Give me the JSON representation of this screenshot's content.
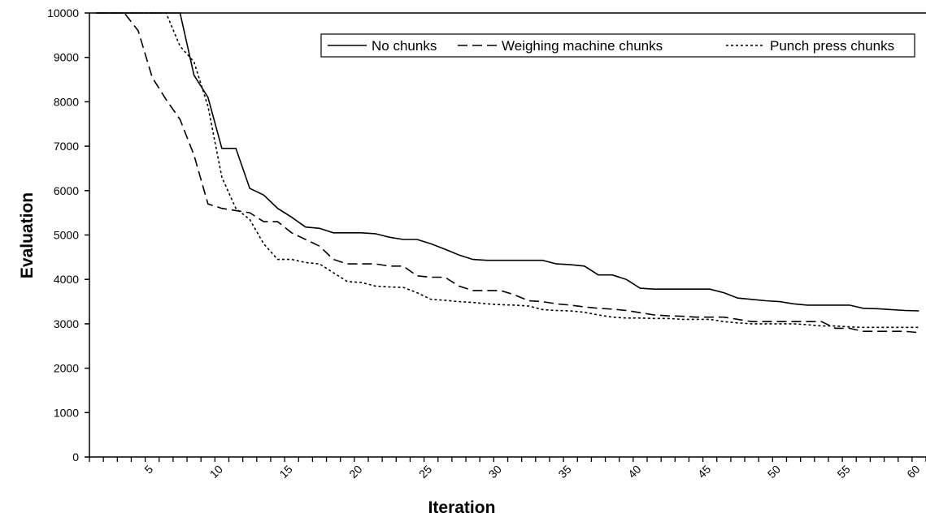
{
  "chart_data": {
    "type": "line",
    "x_label": "Iteration",
    "y_label": "Evaluation",
    "categories": [
      null,
      null,
      null,
      null,
      "5",
      null,
      null,
      null,
      null,
      "10",
      null,
      null,
      null,
      null,
      "15",
      null,
      null,
      null,
      null,
      "20",
      null,
      null,
      null,
      null,
      "25",
      null,
      null,
      null,
      null,
      "30",
      null,
      null,
      null,
      null,
      "35",
      null,
      null,
      null,
      null,
      "40",
      null,
      null,
      null,
      null,
      "45",
      null,
      null,
      null,
      null,
      "50",
      null,
      null,
      null,
      null,
      "55",
      null,
      null,
      null,
      null,
      "60"
    ],
    "ylim": [
      0,
      10000
    ],
    "yticks": [
      0,
      1000,
      2000,
      3000,
      4000,
      5000,
      6000,
      7000,
      8000,
      9000,
      10000
    ],
    "legend": "top-right",
    "series": [
      {
        "name": "No chunks",
        "color": "#000000",
        "dash": "solid",
        "values": [
          10000,
          10000,
          10000,
          10000,
          10000,
          10000,
          10000,
          8600,
          8100,
          6950,
          6950,
          6050,
          5900,
          5600,
          5400,
          5180,
          5150,
          5050,
          5050,
          5050,
          5030,
          4950,
          4900,
          4900,
          4800,
          4680,
          4550,
          4450,
          4430,
          4430,
          4430,
          4430,
          4430,
          4350,
          4330,
          4300,
          4100,
          4100,
          4000,
          3800,
          3780,
          3780,
          3780,
          3780,
          3780,
          3700,
          3580,
          3550,
          3520,
          3500,
          3450,
          3420,
          3420,
          3420,
          3420,
          3350,
          3340,
          3320,
          3300,
          3290
        ]
      },
      {
        "name": "Weighing machine chunks",
        "color": "#000000",
        "dash": "dashed",
        "values": [
          10000,
          10000,
          10000,
          9600,
          8550,
          8050,
          7600,
          6800,
          5700,
          5600,
          5550,
          5500,
          5300,
          5300,
          5050,
          4900,
          4750,
          4450,
          4350,
          4350,
          4350,
          4300,
          4300,
          4080,
          4050,
          4050,
          3850,
          3750,
          3750,
          3750,
          3650,
          3520,
          3500,
          3450,
          3420,
          3380,
          3350,
          3330,
          3300,
          3250,
          3200,
          3180,
          3170,
          3150,
          3150,
          3150,
          3100,
          3050,
          3050,
          3050,
          3050,
          3050,
          3050,
          2900,
          2900,
          2830,
          2830,
          2830,
          2830,
          2800
        ]
      },
      {
        "name": "Punch press chunks",
        "color": "#000000",
        "dash": "dotted",
        "values": [
          10000,
          10000,
          10000,
          10000,
          10000,
          10000,
          9250,
          8900,
          7900,
          6300,
          5600,
          5350,
          4800,
          4450,
          4450,
          4380,
          4350,
          4150,
          3950,
          3930,
          3850,
          3830,
          3820,
          3700,
          3550,
          3530,
          3500,
          3480,
          3450,
          3430,
          3420,
          3400,
          3320,
          3300,
          3290,
          3260,
          3200,
          3150,
          3130,
          3130,
          3120,
          3120,
          3100,
          3100,
          3100,
          3050,
          3020,
          3000,
          3000,
          3000,
          3000,
          2980,
          2950,
          2950,
          2930,
          2920,
          2920,
          2920,
          2920,
          2920
        ]
      }
    ]
  }
}
